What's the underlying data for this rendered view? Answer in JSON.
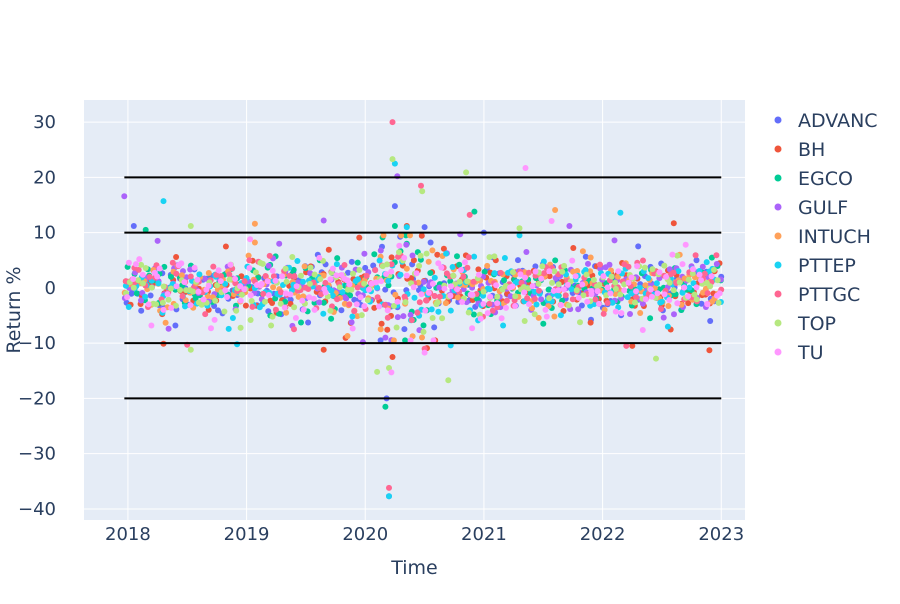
{
  "chart_data": {
    "type": "scatter",
    "xlabel": "Time",
    "ylabel": "Return %",
    "xlim": [
      2017.63,
      2023.2
    ],
    "ylim": [
      -42.0,
      34.0
    ],
    "x_ticks": [
      2018,
      2019,
      2020,
      2021,
      2022,
      2023
    ],
    "y_ticks": [
      -40,
      -30,
      -20,
      -10,
      0,
      10,
      20,
      30
    ],
    "grid": true,
    "legend_position": "right",
    "reference_lines": [
      {
        "y": 20,
        "x_start": 2017.97,
        "x_end": 2023.0
      },
      {
        "y": 10,
        "x_start": 2017.97,
        "x_end": 2023.0
      },
      {
        "y": -10,
        "x_start": 2017.97,
        "x_end": 2023.0
      },
      {
        "y": -20,
        "x_start": 2017.97,
        "x_end": 2023.0
      }
    ],
    "series": [
      {
        "name": "ADVANC",
        "color": "#636efa",
        "points": [
          [
            2018.05,
            11.2
          ],
          [
            2020.22,
            -9.5
          ],
          [
            2020.25,
            14.8
          ],
          [
            2020.2,
            -37.7
          ],
          [
            2020.5,
            11.0
          ],
          [
            2021.0,
            10.0
          ],
          [
            2018.4,
            -6.8
          ],
          [
            2019.6,
            6.0
          ],
          [
            2022.3,
            7.5
          ],
          [
            2020.18,
            -20.0
          ]
        ]
      },
      {
        "name": "BH",
        "color": "#ef553b",
        "points": [
          [
            2018.3,
            -10.1
          ],
          [
            2019.65,
            -11.2
          ],
          [
            2020.23,
            -12.5
          ],
          [
            2020.52,
            -10.9
          ],
          [
            2022.6,
            11.7
          ],
          [
            2022.9,
            -11.3
          ],
          [
            2019.95,
            9.1
          ],
          [
            2020.35,
            11.2
          ],
          [
            2021.1,
            5.0
          ],
          [
            2022.25,
            -10.5
          ]
        ]
      },
      {
        "name": "EGCO",
        "color": "#00cc96",
        "points": [
          [
            2018.15,
            10.5
          ],
          [
            2020.17,
            -21.5
          ],
          [
            2020.25,
            11.2
          ],
          [
            2020.92,
            13.8
          ],
          [
            2021.5,
            -6.5
          ],
          [
            2020.35,
            8.0
          ],
          [
            2019.2,
            -5.0
          ],
          [
            2022.4,
            -5.5
          ]
        ]
      },
      {
        "name": "GULF",
        "color": "#ab63fa",
        "points": [
          [
            2017.97,
            16.6
          ],
          [
            2019.65,
            12.2
          ],
          [
            2020.17,
            -9.0
          ],
          [
            2020.27,
            20.2
          ],
          [
            2020.8,
            9.7
          ],
          [
            2021.72,
            11.2
          ],
          [
            2019.98,
            -9.8
          ],
          [
            2022.1,
            8.6
          ],
          [
            2018.25,
            8.5
          ]
        ]
      },
      {
        "name": "INTUCH",
        "color": "#ffa15a",
        "points": [
          [
            2019.07,
            11.6
          ],
          [
            2021.6,
            14.1
          ],
          [
            2020.13,
            -7.5
          ],
          [
            2019.85,
            -8.7
          ],
          [
            2021.9,
            5.5
          ],
          [
            2022.65,
            6.0
          ]
        ]
      },
      {
        "name": "PTTEP",
        "color": "#19d3f3",
        "points": [
          [
            2018.3,
            15.7
          ],
          [
            2018.92,
            -10.2
          ],
          [
            2020.2,
            -37.7
          ],
          [
            2020.25,
            22.5
          ],
          [
            2020.35,
            11.0
          ],
          [
            2022.15,
            13.6
          ],
          [
            2020.72,
            -10.4
          ],
          [
            2021.3,
            9.5
          ],
          [
            2022.55,
            -7.0
          ]
        ]
      },
      {
        "name": "PTTGC",
        "color": "#ff6692",
        "points": [
          [
            2020.23,
            30.0
          ],
          [
            2020.2,
            -36.2
          ],
          [
            2020.47,
            18.5
          ],
          [
            2020.88,
            13.2
          ],
          [
            2018.5,
            -10.3
          ],
          [
            2019.4,
            -7.5
          ],
          [
            2022.2,
            -10.5
          ],
          [
            2020.5,
            -11.0
          ]
        ]
      },
      {
        "name": "TOP",
        "color": "#b6e880",
        "points": [
          [
            2018.53,
            11.2
          ],
          [
            2018.53,
            -11.2
          ],
          [
            2020.1,
            -15.2
          ],
          [
            2020.23,
            23.3
          ],
          [
            2020.48,
            17.5
          ],
          [
            2020.7,
            -16.7
          ],
          [
            2020.85,
            20.9
          ],
          [
            2020.2,
            -14.5
          ],
          [
            2022.45,
            -12.8
          ],
          [
            2021.3,
            10.8
          ],
          [
            2018.95,
            -7.2
          ]
        ]
      },
      {
        "name": "TU",
        "color": "#ff97ff",
        "points": [
          [
            2019.03,
            8.8
          ],
          [
            2020.22,
            -15.3
          ],
          [
            2020.5,
            -11.7
          ],
          [
            2021.35,
            21.7
          ],
          [
            2021.57,
            12.1
          ],
          [
            2020.9,
            -7.3
          ],
          [
            2022.7,
            7.8
          ],
          [
            2018.7,
            -7.3
          ]
        ]
      }
    ],
    "noise_std": 2.6
  }
}
